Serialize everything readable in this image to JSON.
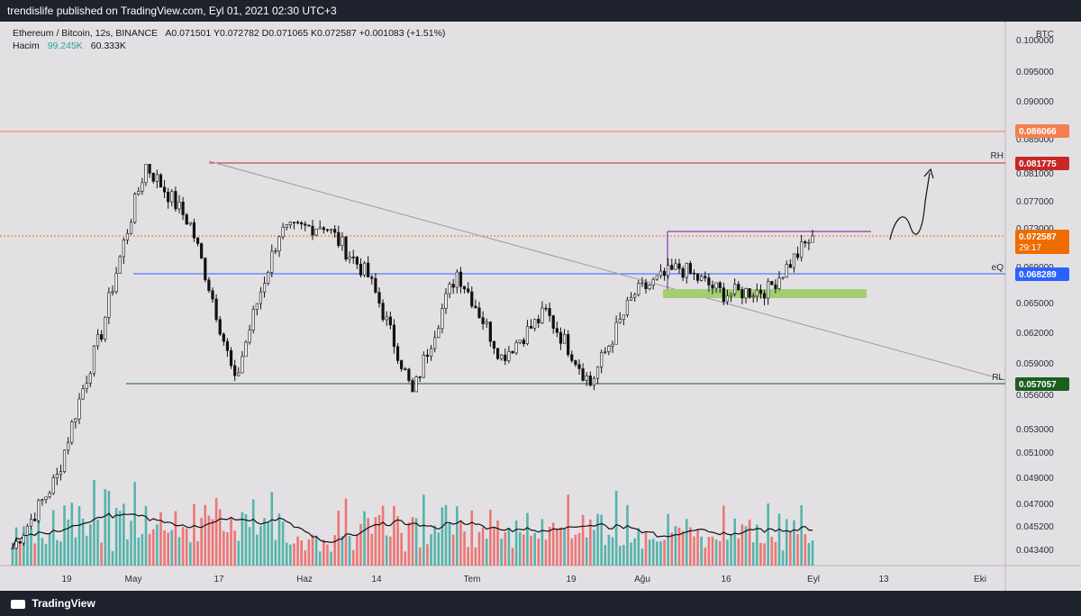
{
  "header": {
    "published": "trendislife published on TradingView.com, Eyl 01, 2021 02:30 UTC+3"
  },
  "legend": {
    "title": "Ethereum / Bitcoin, 12s, BINANCE",
    "ohlc": "A0.071501  Y0.072782  D0.071065  K0.072587  +0.001083 (+1.51%)",
    "volume_label": "Hacim",
    "volume_value": "99.245K",
    "volume_ma": "60.333K"
  },
  "price_axis": {
    "unit": "BTC",
    "ticks": [
      "0.100000",
      "0.095000",
      "0.090000",
      "0.085000",
      "0.081000",
      "0.077000",
      "0.073000",
      "0.069000",
      "0.065000",
      "0.062000",
      "0.059000",
      "0.056000",
      "0.053000",
      "0.051000",
      "0.049000",
      "0.047000",
      "0.045200",
      "0.043400"
    ]
  },
  "time_axis": {
    "ticks": [
      "19",
      "May",
      "17",
      "Haz",
      "14",
      "Tem",
      "19",
      "Ağu",
      "16",
      "Eyl",
      "13",
      "Eki"
    ]
  },
  "levels": {
    "top_line": {
      "value": "0.086066",
      "color": "#f57f4e"
    },
    "rh": {
      "label": "RH",
      "value": "0.081775",
      "color": "#c62828"
    },
    "current": {
      "value": "0.072587",
      "countdown": "29:17",
      "color": "#ef6c00"
    },
    "eq": {
      "label": "eQ",
      "value": "0.068289",
      "color": "#2962ff"
    },
    "rl": {
      "label": "RL",
      "value": "0.057057",
      "color": "#1b5e20"
    }
  },
  "colors": {
    "chart_bg": "#e3e0e4",
    "up": "#26a69a",
    "down": "#ef5350",
    "candle": "#111111",
    "support_zone": "#9ccc65",
    "range_top": "#6a1b9a",
    "trendline": "#9e9aa0"
  },
  "footer": {
    "brand": "TradingView"
  },
  "chart_data": {
    "type": "candlestick",
    "price_points": [
      {
        "x": "Nis 30",
        "close": 0.0435
      },
      {
        "x": "May 06",
        "close": 0.049
      },
      {
        "x": "May 10",
        "close": 0.062
      },
      {
        "x": "May 15",
        "close": 0.0815
      },
      {
        "x": "May 21",
        "close": 0.074
      },
      {
        "x": "May 24",
        "close": 0.057
      },
      {
        "x": "Haz 01",
        "close": 0.073
      },
      {
        "x": "Haz 08",
        "close": 0.074
      },
      {
        "x": "Haz 12",
        "close": 0.068
      },
      {
        "x": "Haz 26",
        "close": 0.056
      },
      {
        "x": "Tem 07",
        "close": 0.0685
      },
      {
        "x": "Tem 17",
        "close": 0.0595
      },
      {
        "x": "Tem 25",
        "close": 0.064
      },
      {
        "x": "Tem 31",
        "close": 0.057
      },
      {
        "x": "Ağu 05",
        "close": 0.066
      },
      {
        "x": "Ağu 11",
        "close": 0.069
      },
      {
        "x": "Ağu 20",
        "close": 0.066
      },
      {
        "x": "Ağu 29",
        "close": 0.0665
      },
      {
        "x": "Eyl 01",
        "close": 0.072587
      }
    ]
  }
}
